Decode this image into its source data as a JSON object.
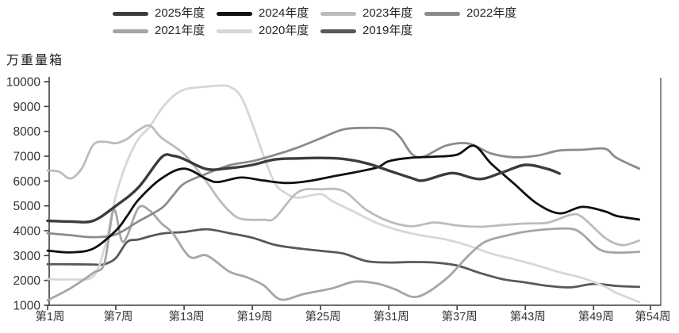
{
  "page": {
    "background": "#ffffff"
  },
  "chart_data": {
    "type": "line",
    "title": "",
    "ylabel": "万重量箱",
    "xlabel": "",
    "ylim": [
      1000,
      10000
    ],
    "xlim": [
      1,
      54
    ],
    "grid": false,
    "legend_position": "top",
    "axis_color": "#3f3f3f",
    "y_ticks": [
      1000,
      2000,
      3000,
      4000,
      5000,
      6000,
      7000,
      8000,
      9000,
      10000
    ],
    "x_ticks": [
      {
        "week": 1,
        "label": "第1周"
      },
      {
        "week": 7,
        "label": "第7周"
      },
      {
        "week": 13,
        "label": "第13周"
      },
      {
        "week": 19,
        "label": "第19周"
      },
      {
        "week": 25,
        "label": "第25周"
      },
      {
        "week": 31,
        "label": "第31周"
      },
      {
        "week": 37,
        "label": "第37周"
      },
      {
        "week": 43,
        "label": "第43周"
      },
      {
        "week": 49,
        "label": "第49周"
      },
      {
        "week": 54,
        "label": "第54周"
      }
    ],
    "legend_rows": [
      [
        "2025年度",
        "2024年度",
        "2023年度",
        "2022年度"
      ],
      [
        "2021年度",
        "2020年度",
        "2019年度"
      ]
    ],
    "series": [
      {
        "name": "2025年度",
        "color": "#3c3c3c",
        "line_width": 3.4,
        "points": [
          [
            1,
            4400
          ],
          [
            3,
            4370
          ],
          [
            5,
            4400
          ],
          [
            7,
            5000
          ],
          [
            9,
            5750
          ],
          [
            11,
            6950
          ],
          [
            12,
            7020
          ],
          [
            13,
            6880
          ],
          [
            15,
            6480
          ],
          [
            17,
            6520
          ],
          [
            19,
            6650
          ],
          [
            21,
            6870
          ],
          [
            23,
            6910
          ],
          [
            25,
            6930
          ],
          [
            27,
            6890
          ],
          [
            29,
            6720
          ],
          [
            31,
            6420
          ],
          [
            33,
            6120
          ],
          [
            34,
            6020
          ],
          [
            36,
            6280
          ],
          [
            37,
            6300
          ],
          [
            39,
            6080
          ],
          [
            41,
            6350
          ],
          [
            43,
            6650
          ],
          [
            45,
            6480
          ],
          [
            46,
            6300
          ]
        ]
      },
      {
        "name": "2024年度",
        "color": "#0f0f0f",
        "line_width": 2.8,
        "points": [
          [
            1,
            3200
          ],
          [
            3,
            3130
          ],
          [
            5,
            3280
          ],
          [
            7,
            4000
          ],
          [
            8,
            4600
          ],
          [
            9,
            5250
          ],
          [
            11,
            6100
          ],
          [
            13,
            6500
          ],
          [
            15,
            6080
          ],
          [
            16,
            5960
          ],
          [
            18,
            6140
          ],
          [
            20,
            6020
          ],
          [
            22,
            5920
          ],
          [
            24,
            6000
          ],
          [
            26,
            6180
          ],
          [
            28,
            6350
          ],
          [
            30,
            6550
          ],
          [
            31,
            6800
          ],
          [
            33,
            6940
          ],
          [
            35,
            6980
          ],
          [
            37,
            7060
          ],
          [
            38.5,
            7420
          ],
          [
            40,
            6700
          ],
          [
            42,
            5900
          ],
          [
            44,
            5100
          ],
          [
            46,
            4700
          ],
          [
            48,
            4960
          ],
          [
            50,
            4780
          ],
          [
            51,
            4600
          ],
          [
            53,
            4450
          ]
        ]
      },
      {
        "name": "2023年度",
        "color": "#bcbcbc",
        "line_width": 2.8,
        "points": [
          [
            1,
            6420
          ],
          [
            2,
            6380
          ],
          [
            3,
            6100
          ],
          [
            4,
            6500
          ],
          [
            5,
            7450
          ],
          [
            6,
            7580
          ],
          [
            7,
            7520
          ],
          [
            8,
            7700
          ],
          [
            9,
            8050
          ],
          [
            10,
            8230
          ],
          [
            11,
            7750
          ],
          [
            13,
            7080
          ],
          [
            15,
            5950
          ],
          [
            16,
            5300
          ],
          [
            17,
            4780
          ],
          [
            18,
            4480
          ],
          [
            20,
            4440
          ],
          [
            21,
            4520
          ],
          [
            23,
            5550
          ],
          [
            25,
            5670
          ],
          [
            27,
            5600
          ],
          [
            29,
            4850
          ],
          [
            31,
            4380
          ],
          [
            33,
            4180
          ],
          [
            35,
            4330
          ],
          [
            37,
            4210
          ],
          [
            39,
            4160
          ],
          [
            41,
            4230
          ],
          [
            43,
            4290
          ],
          [
            45,
            4330
          ],
          [
            47,
            4640
          ],
          [
            48,
            4550
          ],
          [
            50,
            3720
          ],
          [
            51.5,
            3420
          ],
          [
            53,
            3600
          ]
        ]
      },
      {
        "name": "2022年度",
        "color": "#8b8b8b",
        "line_width": 2.8,
        "points": [
          [
            1,
            3900
          ],
          [
            3,
            3820
          ],
          [
            5,
            3740
          ],
          [
            7,
            3850
          ],
          [
            9,
            4380
          ],
          [
            11,
            4900
          ],
          [
            12,
            5400
          ],
          [
            13,
            5900
          ],
          [
            15,
            6300
          ],
          [
            17,
            6640
          ],
          [
            19,
            6800
          ],
          [
            21,
            7050
          ],
          [
            23,
            7350
          ],
          [
            25,
            7720
          ],
          [
            27,
            8080
          ],
          [
            29,
            8140
          ],
          [
            31,
            8090
          ],
          [
            32,
            7760
          ],
          [
            33,
            7100
          ],
          [
            34,
            6970
          ],
          [
            36,
            7420
          ],
          [
            38,
            7510
          ],
          [
            40,
            7110
          ],
          [
            42,
            6960
          ],
          [
            44,
            7020
          ],
          [
            46,
            7230
          ],
          [
            48,
            7260
          ],
          [
            50,
            7300
          ],
          [
            51,
            6940
          ],
          [
            53,
            6500
          ]
        ]
      },
      {
        "name": "2021年度",
        "color": "#a5a5a5",
        "line_width": 2.8,
        "points": [
          [
            1,
            1200
          ],
          [
            3,
            1680
          ],
          [
            5,
            2300
          ],
          [
            6,
            2700
          ],
          [
            6.8,
            4840
          ],
          [
            7.5,
            3620
          ],
          [
            8,
            3800
          ],
          [
            9,
            4930
          ],
          [
            10,
            4800
          ],
          [
            11,
            4300
          ],
          [
            12,
            3900
          ],
          [
            13.5,
            2950
          ],
          [
            15,
            3000
          ],
          [
            17,
            2350
          ],
          [
            18.5,
            2130
          ],
          [
            20,
            1800
          ],
          [
            21.5,
            1230
          ],
          [
            23.5,
            1450
          ],
          [
            26,
            1680
          ],
          [
            28,
            1950
          ],
          [
            30,
            1870
          ],
          [
            31.5,
            1650
          ],
          [
            33.5,
            1340
          ],
          [
            36,
            2050
          ],
          [
            38,
            3000
          ],
          [
            39.5,
            3560
          ],
          [
            41.5,
            3820
          ],
          [
            43,
            3960
          ],
          [
            45,
            4060
          ],
          [
            47,
            4080
          ],
          [
            48,
            3870
          ],
          [
            49.5,
            3250
          ],
          [
            51,
            3120
          ],
          [
            53,
            3150
          ]
        ]
      },
      {
        "name": "2020年度",
        "color": "#d7d7d7",
        "line_width": 2.8,
        "points": [
          [
            1,
            2050
          ],
          [
            3,
            2040
          ],
          [
            5,
            2160
          ],
          [
            6,
            3300
          ],
          [
            7,
            5400
          ],
          [
            8,
            6800
          ],
          [
            9,
            7700
          ],
          [
            10,
            8200
          ],
          [
            11,
            8900
          ],
          [
            12,
            9400
          ],
          [
            13,
            9680
          ],
          [
            14,
            9760
          ],
          [
            15,
            9800
          ],
          [
            16,
            9840
          ],
          [
            17,
            9800
          ],
          [
            18,
            9400
          ],
          [
            19,
            8300
          ],
          [
            20,
            7000
          ],
          [
            21,
            5900
          ],
          [
            22,
            5500
          ],
          [
            23,
            5330
          ],
          [
            25,
            5470
          ],
          [
            26,
            5200
          ],
          [
            28,
            4750
          ],
          [
            30,
            4300
          ],
          [
            32,
            4000
          ],
          [
            34,
            3800
          ],
          [
            36,
            3650
          ],
          [
            38,
            3400
          ],
          [
            40,
            3080
          ],
          [
            42,
            2850
          ],
          [
            44,
            2610
          ],
          [
            46,
            2330
          ],
          [
            48,
            2100
          ],
          [
            50,
            1750
          ],
          [
            51,
            1500
          ],
          [
            53,
            1130
          ]
        ]
      },
      {
        "name": "2019年度",
        "color": "#585858",
        "line_width": 2.8,
        "points": [
          [
            1,
            2650
          ],
          [
            3,
            2650
          ],
          [
            5,
            2640
          ],
          [
            6,
            2650
          ],
          [
            7,
            2900
          ],
          [
            8,
            3550
          ],
          [
            9,
            3650
          ],
          [
            11,
            3880
          ],
          [
            13,
            3950
          ],
          [
            15,
            4060
          ],
          [
            17,
            3900
          ],
          [
            19,
            3720
          ],
          [
            21,
            3430
          ],
          [
            23,
            3290
          ],
          [
            25,
            3190
          ],
          [
            27,
            3080
          ],
          [
            29,
            2780
          ],
          [
            31,
            2720
          ],
          [
            33,
            2740
          ],
          [
            35,
            2720
          ],
          [
            37,
            2600
          ],
          [
            39,
            2300
          ],
          [
            41,
            2050
          ],
          [
            43,
            1920
          ],
          [
            45,
            1780
          ],
          [
            47,
            1720
          ],
          [
            49,
            1860
          ],
          [
            51,
            1780
          ],
          [
            53,
            1740
          ]
        ]
      }
    ]
  }
}
